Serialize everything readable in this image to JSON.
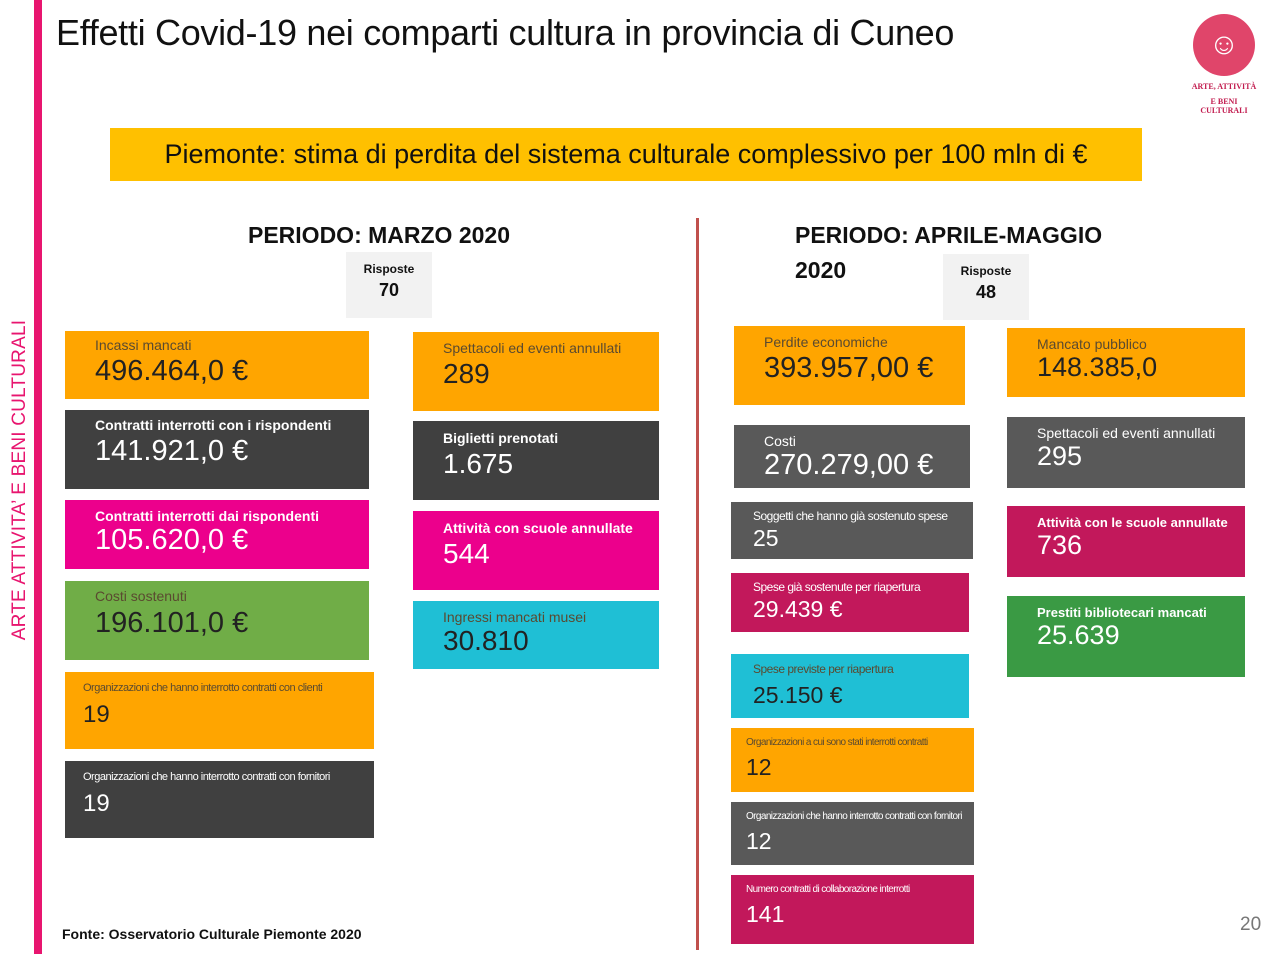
{
  "side_label": "ARTE ATTIVITA’ E BENI CULTURALI",
  "title": "Effetti Covid-19 nei comparti cultura in provincia di Cuneo",
  "logo": {
    "line1": "ARTE, ATTIVITÀ",
    "line2": "E BENI CULTURALI"
  },
  "banner": "Piemonte: stima di perdita del sistema culturale complessivo per 100 mln di €",
  "left_period": {
    "title": "PERIODO: MARZO 2020",
    "responses_label": "Risposte",
    "responses_value": "70"
  },
  "right_period": {
    "title_line1": "PERIODO: APRILE-MAGGIO",
    "title_line2": "2020",
    "responses_label": "Risposte",
    "responses_value": "48"
  },
  "left_col1": [
    {
      "label": "Incassi mancati",
      "value": "496.464,0 €"
    },
    {
      "label": "Contratti interrotti con i rispondenti",
      "value": "141.921,0 €"
    },
    {
      "label": "Contratti interrotti dai rispondenti",
      "value": "105.620,0 €"
    },
    {
      "label": "Costi sostenuti",
      "value": "196.101,0 €"
    },
    {
      "label": "Organizzazioni che hanno interrotto contratti con clienti",
      "value": "19"
    },
    {
      "label": "Organizzazioni che hanno interrotto contratti con fornitori",
      "value": "19"
    }
  ],
  "left_col2": [
    {
      "label": "Spettacoli ed eventi annullati",
      "value": "289"
    },
    {
      "label": "Biglietti prenotati",
      "value": "1.675"
    },
    {
      "label": "Attività con scuole annullate",
      "value": "544"
    },
    {
      "label": "Ingressi mancati musei",
      "value": "30.810"
    }
  ],
  "right_col1": [
    {
      "label": "Perdite economiche",
      "value": "393.957,00 €"
    },
    {
      "label": "Costi",
      "value": "270.279,00 €"
    },
    {
      "label": "Soggetti che hanno già sostenuto spese",
      "value": "25"
    },
    {
      "label": "Spese già sostenute per riapertura",
      "value": "29.439 €"
    },
    {
      "label": "Spese previste per riapertura",
      "value": "25.150 €"
    },
    {
      "label": "Organizzazioni a cui sono stati interrotti contratti",
      "value": "12"
    },
    {
      "label": "Organizzazioni che hanno interrotto contratti con fornitori",
      "value": "12"
    },
    {
      "label": "Numero contratti di collaborazione interrotti",
      "value": "141"
    }
  ],
  "right_col2": [
    {
      "label": "Mancato pubblico",
      "value": "148.385,0"
    },
    {
      "label": "Spettacoli ed eventi annullati",
      "value": "295"
    },
    {
      "label": "Attività con le scuole annullate",
      "value": "736"
    },
    {
      "label": "Prestiti bibliotecari mancati",
      "value": "25.639"
    }
  ],
  "source": "Fonte: Osservatorio Culturale Piemonte 2020",
  "page_number": "20"
}
